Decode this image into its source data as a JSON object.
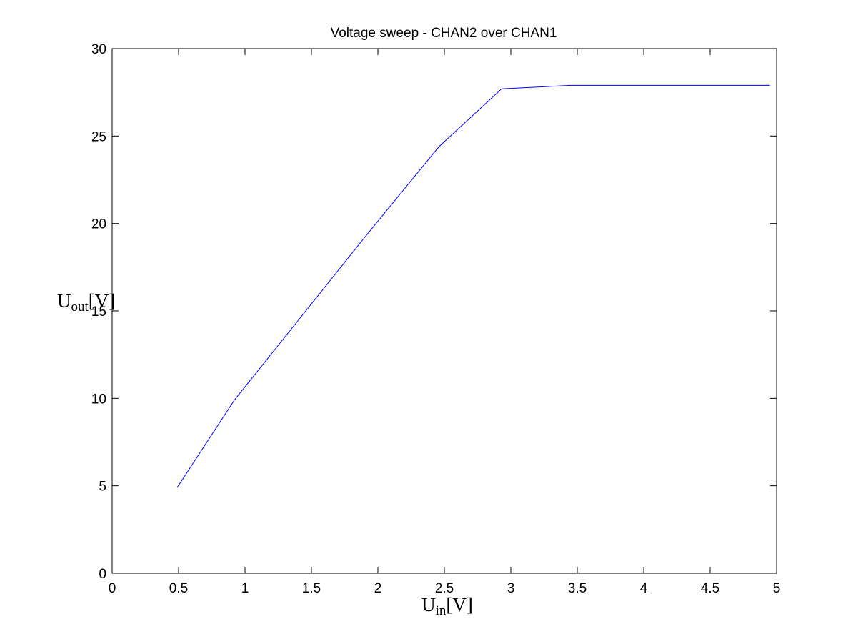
{
  "chart_data": {
    "type": "line",
    "title": "Voltage sweep - CHAN2 over CHAN1",
    "xlabel": {
      "base": "U",
      "sub": "in",
      "unit": "[V]"
    },
    "ylabel": {
      "base": "U",
      "sub": "out",
      "unit": "[V]"
    },
    "xlim": [
      0,
      5
    ],
    "ylim": [
      0,
      30
    ],
    "xticks": [
      0,
      0.5,
      1,
      1.5,
      2,
      2.5,
      3,
      3.5,
      4,
      4.5,
      5
    ],
    "xtick_labels": [
      "0",
      "0.5",
      "1",
      "1.5",
      "2",
      "2.5",
      "3",
      "3.5",
      "4",
      "4.5",
      "5"
    ],
    "yticks": [
      0,
      5,
      10,
      15,
      20,
      25,
      30
    ],
    "ytick_labels": [
      "0",
      "5",
      "10",
      "15",
      "20",
      "25",
      "30"
    ],
    "grid": false,
    "line_color": "#0000ff",
    "series": [
      {
        "x": [
          0.49,
          0.92,
          1.9,
          2.46,
          2.93,
          3.45,
          4.95
        ],
        "y": [
          4.9,
          9.9,
          19.2,
          24.4,
          27.7,
          27.9,
          27.9
        ]
      }
    ]
  }
}
